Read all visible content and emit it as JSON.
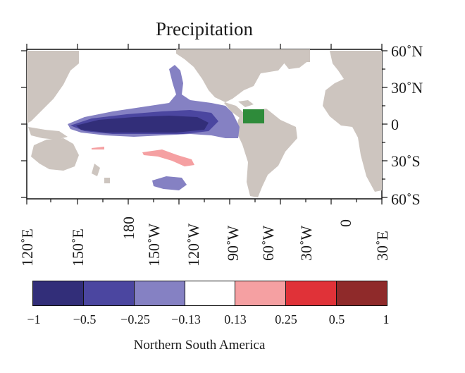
{
  "title": "Precipitation",
  "lat_labels": [
    "60˚N",
    "30˚N",
    "0",
    "30˚S",
    "60˚S"
  ],
  "lon_labels": [
    "120˚E",
    "150˚E",
    "180",
    "150˚W",
    "120˚W",
    "90˚W",
    "60˚W",
    "30˚W",
    "0",
    "30˚E"
  ],
  "colorbar": {
    "title": "Northern South America",
    "ticks": [
      "−1",
      "−0.5",
      "−0.25",
      "−0.13",
      "0.13",
      "0.25",
      "0.5",
      "1"
    ],
    "colors": [
      "#322e79",
      "#4b46a0",
      "#8581c3",
      "#ffffff",
      "#f5a0a2",
      "#e03238",
      "#8f2a2a"
    ]
  },
  "colors": {
    "land": "#cdc5bf",
    "region_box": "#2e8b3a"
  }
}
